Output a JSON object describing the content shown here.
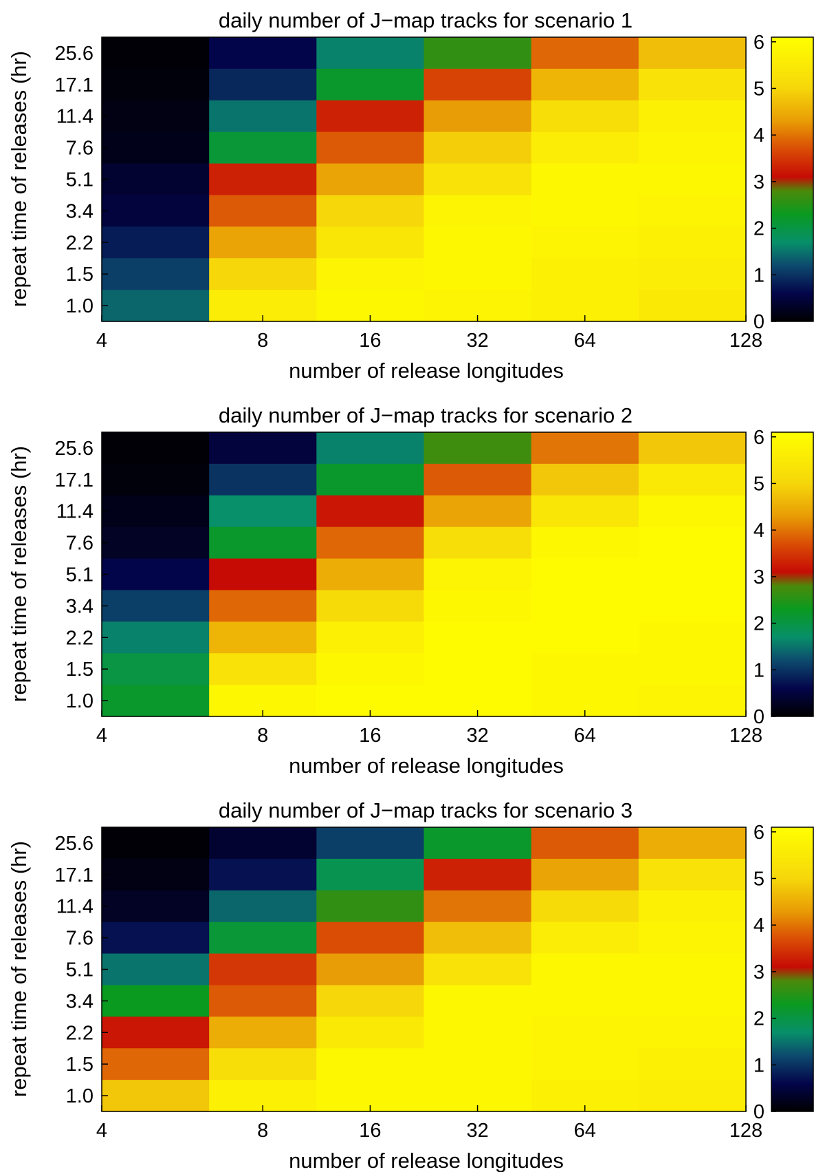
{
  "colorbar": {
    "min": 0,
    "max": 6.1,
    "ticks": [
      "0",
      "1",
      "2",
      "3",
      "4",
      "5",
      "6"
    ],
    "colormap_stops": [
      {
        "v": 0.0,
        "color": "#000000"
      },
      {
        "v": 0.6,
        "color": "#03054a"
      },
      {
        "v": 1.2,
        "color": "#0d4a6e"
      },
      {
        "v": 1.7,
        "color": "#079069"
      },
      {
        "v": 2.3,
        "color": "#0a9a20"
      },
      {
        "v": 2.8,
        "color": "#4b8a0a"
      },
      {
        "v": 3.1,
        "color": "#c60b05"
      },
      {
        "v": 3.7,
        "color": "#da4d05"
      },
      {
        "v": 4.3,
        "color": "#e89c05"
      },
      {
        "v": 5.0,
        "color": "#f6d70a"
      },
      {
        "v": 6.1,
        "color": "#ffff00"
      }
    ]
  },
  "chart_data": [
    {
      "type": "heatmap",
      "title": "daily number of J−map tracks for scenario 1",
      "xlabel": "number of release longitudes",
      "ylabel": "repeat time of releases (hr)",
      "x_categories": [
        "4",
        "8",
        "16",
        "32",
        "64",
        "128"
      ],
      "y_categories": [
        "25.6",
        "17.1",
        "11.4",
        "7.6",
        "5.1",
        "3.4",
        "2.2",
        "1.5",
        "1.0"
      ],
      "values": [
        [
          0.05,
          0.6,
          1.6,
          2.6,
          3.9,
          4.7
        ],
        [
          0.1,
          0.9,
          2.2,
          3.6,
          4.6,
          5.3
        ],
        [
          0.15,
          1.5,
          3.3,
          4.3,
          5.2,
          5.7
        ],
        [
          0.2,
          2.1,
          3.8,
          4.9,
          5.6,
          5.8
        ],
        [
          0.4,
          3.3,
          4.4,
          5.3,
          5.9,
          5.9
        ],
        [
          0.5,
          3.8,
          5.0,
          5.8,
          5.9,
          5.8
        ],
        [
          0.8,
          4.4,
          5.4,
          5.9,
          5.8,
          5.7
        ],
        [
          1.1,
          5.0,
          5.8,
          5.9,
          5.7,
          5.6
        ],
        [
          1.4,
          5.6,
          5.9,
          5.8,
          5.7,
          5.5
        ]
      ]
    },
    {
      "type": "heatmap",
      "title": "daily number of J−map tracks for scenario 2",
      "xlabel": "number of release longitudes",
      "ylabel": "repeat time of releases (hr)",
      "x_categories": [
        "4",
        "8",
        "16",
        "32",
        "64",
        "128"
      ],
      "y_categories": [
        "25.6",
        "17.1",
        "11.4",
        "7.6",
        "5.1",
        "3.4",
        "2.2",
        "1.5",
        "1.0"
      ],
      "values": [
        [
          0.05,
          0.5,
          1.6,
          2.7,
          4.0,
          4.8
        ],
        [
          0.1,
          1.0,
          2.2,
          3.8,
          4.8,
          5.5
        ],
        [
          0.2,
          1.7,
          3.2,
          4.4,
          5.4,
          5.9
        ],
        [
          0.3,
          2.2,
          3.9,
          5.2,
          5.9,
          6.0
        ],
        [
          0.6,
          3.1,
          4.5,
          5.8,
          6.0,
          6.0
        ],
        [
          1.1,
          3.9,
          5.1,
          5.9,
          6.0,
          6.0
        ],
        [
          1.6,
          4.6,
          5.7,
          6.0,
          6.0,
          5.9
        ],
        [
          2.0,
          5.3,
          5.9,
          6.0,
          5.9,
          5.9
        ],
        [
          2.2,
          5.9,
          6.0,
          6.0,
          5.9,
          5.8
        ]
      ]
    },
    {
      "type": "heatmap",
      "title": "daily number of J−map tracks for scenario 3",
      "xlabel": "number of release longitudes",
      "ylabel": "repeat time of releases (hr)",
      "x_categories": [
        "4",
        "8",
        "16",
        "32",
        "64",
        "128"
      ],
      "y_categories": [
        "25.6",
        "17.1",
        "11.4",
        "7.6",
        "5.1",
        "3.4",
        "2.2",
        "1.5",
        "1.0"
      ],
      "values": [
        [
          0.05,
          0.4,
          1.1,
          2.2,
          3.8,
          4.5
        ],
        [
          0.15,
          0.7,
          1.9,
          3.3,
          4.4,
          5.3
        ],
        [
          0.3,
          1.4,
          2.6,
          4.0,
          5.1,
          5.7
        ],
        [
          0.7,
          2.1,
          3.7,
          4.7,
          5.6,
          5.8
        ],
        [
          1.5,
          3.5,
          4.3,
          5.3,
          5.9,
          5.9
        ],
        [
          2.3,
          3.8,
          5.0,
          5.9,
          5.9,
          5.9
        ],
        [
          3.2,
          4.5,
          5.5,
          5.9,
          5.8,
          5.8
        ],
        [
          3.9,
          5.2,
          5.9,
          5.9,
          5.8,
          5.7
        ],
        [
          4.8,
          5.7,
          5.9,
          5.9,
          5.7,
          5.6
        ]
      ]
    }
  ]
}
